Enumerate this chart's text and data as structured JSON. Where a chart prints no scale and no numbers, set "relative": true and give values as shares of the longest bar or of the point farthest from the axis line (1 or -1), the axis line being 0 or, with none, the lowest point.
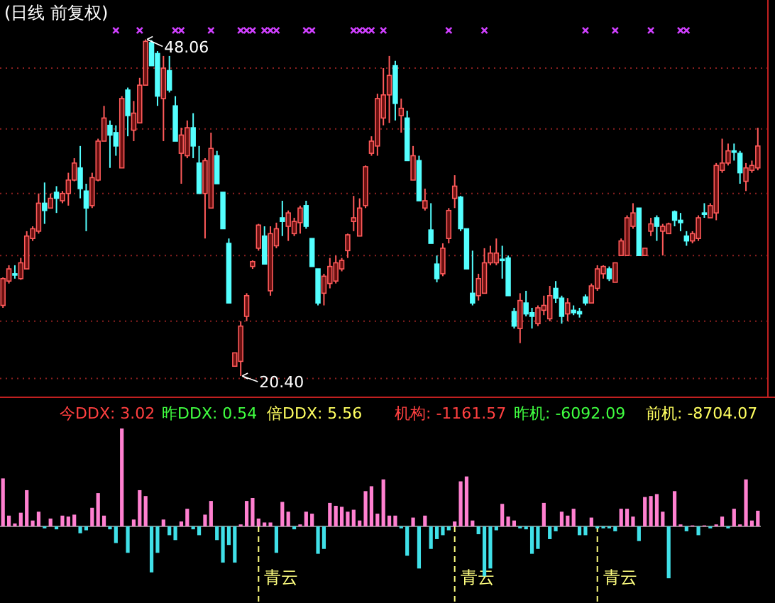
{
  "chart_data": [
    {
      "type": "candlestick",
      "title": "(日线 前复权)",
      "categories": [
        null,
        null,
        null,
        null,
        null,
        null,
        null,
        null,
        null,
        null,
        null,
        null,
        null,
        null,
        null,
        null,
        null,
        null,
        null,
        null,
        null,
        null,
        null,
        null,
        null,
        null,
        null,
        null,
        null,
        null,
        null,
        null,
        null,
        null,
        null,
        null,
        null,
        null,
        null,
        null,
        null,
        null,
        null,
        null,
        null,
        null,
        null,
        null,
        null,
        null,
        null,
        null,
        null,
        null,
        null,
        null,
        null,
        null,
        null,
        null,
        null,
        null,
        null,
        null,
        null,
        null,
        null,
        null,
        null,
        null,
        null,
        null,
        null,
        null,
        null,
        null,
        null,
        null,
        null,
        null,
        null,
        null,
        null,
        null,
        null,
        null,
        null,
        null,
        null,
        null,
        null,
        null,
        null,
        null,
        null,
        null,
        null,
        null,
        null,
        null,
        null,
        null,
        null,
        null,
        null,
        null,
        null,
        null,
        null,
        null,
        null,
        null,
        null,
        null,
        null,
        null,
        null,
        null,
        null,
        null,
        null,
        null,
        null,
        null,
        null,
        null,
        null,
        null
      ],
      "ohlc": [
        [
          26.2,
          28.5,
          26.0,
          28.4
        ],
        [
          28.2,
          29.5,
          28.0,
          29.2
        ],
        [
          28.8,
          29.5,
          28.4,
          28.7
        ],
        [
          28.4,
          30.1,
          28.3,
          29.7
        ],
        [
          29.2,
          32.3,
          29.2,
          31.9
        ],
        [
          31.7,
          32.7,
          31.5,
          32.5
        ],
        [
          32.3,
          35.4,
          32.1,
          34.6
        ],
        [
          34.6,
          36.3,
          32.9,
          34.0
        ],
        [
          34.2,
          35.4,
          34.2,
          35.0
        ],
        [
          35.5,
          36.0,
          33.8,
          35.0
        ],
        [
          34.8,
          35.6,
          34.6,
          35.4
        ],
        [
          35.4,
          37.1,
          34.4,
          36.5
        ],
        [
          36.5,
          38.3,
          36.4,
          37.9
        ],
        [
          37.5,
          39.3,
          35.0,
          35.8
        ],
        [
          35.6,
          36.2,
          32.3,
          34.2
        ],
        [
          34.4,
          37.1,
          34.2,
          36.7
        ],
        [
          36.5,
          39.9,
          36.4,
          39.7
        ],
        [
          39.7,
          42.6,
          39.7,
          41.6
        ],
        [
          41.0,
          41.4,
          37.5,
          40.2
        ],
        [
          40.4,
          41.0,
          38.5,
          39.3
        ],
        [
          37.5,
          43.4,
          37.5,
          43.2
        ],
        [
          43.9,
          44.1,
          40.1,
          41.8
        ],
        [
          40.6,
          43.0,
          39.7,
          42.0
        ],
        [
          41.2,
          44.9,
          41.2,
          44.3
        ],
        [
          44.3,
          48.06,
          44.3,
          47.9
        ],
        [
          47.8,
          48.0,
          45.9,
          45.9
        ],
        [
          46.9,
          47.1,
          42.6,
          43.4
        ],
        [
          43.2,
          46.7,
          39.7,
          45.7
        ],
        [
          45.5,
          46.7,
          43.7,
          43.9
        ],
        [
          42.6,
          43.4,
          39.7,
          39.7
        ],
        [
          38.7,
          40.8,
          36.2,
          40.2
        ],
        [
          38.5,
          41.4,
          38.3,
          40.8
        ],
        [
          40.8,
          42.0,
          38.3,
          39.3
        ],
        [
          37.9,
          39.3,
          35.4,
          35.4
        ],
        [
          35.4,
          38.3,
          31.7,
          38.1
        ],
        [
          34.2,
          40.4,
          34.2,
          39.1
        ],
        [
          38.5,
          38.9,
          36.2,
          36.2
        ],
        [
          35.5,
          35.5,
          32.5,
          32.5
        ],
        [
          31.3,
          31.7,
          26.4,
          26.4
        ],
        [
          21.2,
          22.3,
          21.2,
          22.3
        ],
        [
          21.6,
          24.9,
          20.4,
          24.5
        ],
        [
          25.3,
          27.2,
          24.9,
          27.0
        ],
        [
          29.4,
          29.9,
          29.2,
          29.8
        ],
        [
          30.9,
          32.9,
          30.7,
          32.8
        ],
        [
          31.9,
          32.7,
          29.6,
          29.6
        ],
        [
          27.4,
          32.7,
          27.0,
          32.1
        ],
        [
          31.1,
          33.0,
          30.9,
          32.5
        ],
        [
          33.4,
          34.8,
          31.9,
          33.1
        ],
        [
          32.7,
          34.0,
          31.5,
          33.8
        ],
        [
          32.1,
          33.4,
          31.9,
          33.1
        ],
        [
          33.0,
          34.4,
          32.1,
          34.2
        ],
        [
          34.4,
          34.8,
          32.5,
          32.7
        ],
        [
          31.7,
          31.7,
          29.4,
          29.4
        ],
        [
          29.2,
          29.2,
          26.2,
          26.4
        ],
        [
          27.2,
          28.8,
          26.2,
          28.6
        ],
        [
          28.0,
          30.1,
          27.6,
          29.4
        ],
        [
          28.2,
          30.3,
          28.0,
          29.7
        ],
        [
          29.2,
          30.1,
          29.0,
          29.9
        ],
        [
          30.7,
          32.1,
          30.1,
          32.0
        ],
        [
          33.1,
          35.2,
          32.3,
          33.4
        ],
        [
          31.9,
          35.0,
          31.9,
          34.2
        ],
        [
          34.4,
          37.7,
          34.2,
          37.6
        ],
        [
          38.7,
          40.1,
          38.5,
          39.7
        ],
        [
          39.3,
          43.6,
          38.5,
          43.2
        ],
        [
          41.6,
          45.7,
          41.0,
          43.5
        ],
        [
          43.5,
          46.7,
          41.2,
          45.1
        ],
        [
          45.9,
          46.3,
          41.4,
          42.8
        ],
        [
          41.8,
          43.2,
          40.4,
          42.4
        ],
        [
          41.6,
          42.2,
          38.1,
          38.1
        ],
        [
          36.5,
          39.3,
          36.5,
          38.5
        ],
        [
          38.1,
          38.5,
          34.8,
          34.8
        ],
        [
          34.2,
          35.8,
          34.0,
          34.8
        ],
        [
          32.4,
          34.6,
          31.3,
          31.3
        ],
        [
          29.6,
          30.3,
          28.1,
          28.4
        ],
        [
          28.8,
          31.3,
          28.6,
          30.9
        ],
        [
          31.7,
          34.2,
          31.3,
          34.0
        ],
        [
          35.0,
          36.9,
          34.2,
          36.0
        ],
        [
          35.1,
          35.2,
          32.3,
          32.5
        ],
        [
          32.5,
          32.5,
          29.2,
          29.2
        ],
        [
          27.2,
          30.7,
          26.2,
          26.4
        ],
        [
          27.0,
          28.8,
          26.6,
          28.4
        ],
        [
          27.2,
          30.9,
          27.2,
          29.7
        ],
        [
          29.7,
          31.1,
          29.5,
          30.5
        ],
        [
          29.7,
          31.7,
          29.5,
          30.5
        ],
        [
          30.0,
          31.1,
          28.4,
          29.9
        ],
        [
          30.1,
          30.3,
          27.0,
          27.0
        ],
        [
          25.7,
          26.0,
          24.3,
          24.5
        ],
        [
          24.3,
          27.2,
          23.1,
          26.6
        ],
        [
          26.4,
          27.4,
          25.3,
          25.5
        ],
        [
          25.6,
          26.0,
          24.3,
          25.3
        ],
        [
          24.7,
          26.2,
          24.5,
          26.0
        ],
        [
          25.8,
          27.0,
          25.4,
          26.2
        ],
        [
          25.1,
          27.8,
          24.9,
          27.0
        ],
        [
          27.6,
          28.2,
          26.4,
          26.8
        ],
        [
          26.8,
          27.0,
          24.7,
          25.3
        ],
        [
          25.5,
          26.8,
          24.9,
          26.4
        ],
        [
          25.8,
          26.2,
          25.4,
          25.6
        ],
        [
          25.7,
          26.0,
          25.2,
          25.5
        ],
        [
          26.9,
          27.1,
          26.2,
          26.4
        ],
        [
          26.4,
          28.0,
          26.4,
          27.8
        ],
        [
          27.6,
          29.5,
          27.4,
          29.2
        ],
        [
          28.8,
          29.5,
          28.4,
          29.4
        ],
        [
          29.2,
          29.4,
          28.2,
          28.4
        ],
        [
          28.1,
          29.7,
          28.1,
          29.7
        ],
        [
          30.3,
          31.7,
          30.3,
          31.5
        ],
        [
          30.3,
          33.6,
          30.3,
          33.4
        ],
        [
          32.7,
          34.6,
          32.5,
          33.8
        ],
        [
          34.2,
          34.2,
          30.3,
          30.3
        ],
        [
          30.3,
          30.9,
          30.3,
          30.9
        ],
        [
          32.3,
          33.4,
          31.9,
          32.9
        ],
        [
          33.4,
          33.6,
          31.5,
          32.7
        ],
        [
          32.3,
          32.9,
          30.3,
          32.7
        ],
        [
          32.1,
          33.0,
          32.1,
          32.9
        ],
        [
          33.9,
          34.0,
          32.7,
          33.2
        ],
        [
          33.2,
          33.8,
          32.3,
          33.0
        ],
        [
          31.9,
          32.3,
          31.1,
          31.5
        ],
        [
          31.5,
          32.3,
          31.3,
          32.1
        ],
        [
          31.7,
          33.6,
          31.5,
          33.4
        ],
        [
          33.8,
          34.6,
          33.4,
          33.7
        ],
        [
          33.4,
          34.6,
          33.4,
          34.4
        ],
        [
          33.8,
          37.9,
          33.2,
          37.7
        ],
        [
          37.3,
          39.9,
          37.1,
          37.9
        ],
        [
          37.9,
          39.5,
          37.7,
          38.9
        ],
        [
          38.9,
          39.5,
          38.1,
          38.8
        ],
        [
          38.7,
          38.9,
          36.2,
          37.1
        ],
        [
          36.4,
          37.9,
          35.6,
          37.5
        ],
        [
          37.3,
          38.1,
          37.1,
          37.7
        ],
        [
          37.5,
          40.8,
          37.3,
          39.3
        ]
      ],
      "series": [
        {
          "type": "scatter",
          "color": "#d040ff",
          "marker": "cross",
          "values": [
            null,
            null,
            null,
            null,
            null,
            null,
            null,
            null,
            null,
            null,
            null,
            null,
            null,
            null,
            null,
            null,
            null,
            null,
            null,
            48.8,
            null,
            null,
            null,
            48.8,
            null,
            null,
            null,
            null,
            null,
            48.8,
            48.8,
            null,
            null,
            null,
            null,
            48.8,
            null,
            null,
            null,
            null,
            48.8,
            48.8,
            48.8,
            null,
            48.8,
            48.8,
            48.8,
            null,
            null,
            null,
            null,
            48.8,
            48.8,
            null,
            null,
            null,
            null,
            null,
            null,
            48.8,
            48.8,
            48.8,
            48.8,
            null,
            48.8,
            null,
            null,
            null,
            null,
            null,
            null,
            null,
            null,
            null,
            null,
            48.8,
            null,
            null,
            null,
            null,
            null,
            48.8,
            null,
            null,
            null,
            null,
            null,
            null,
            null,
            null,
            null,
            null,
            null,
            null,
            null,
            null,
            null,
            null,
            48.8,
            null,
            null,
            null,
            null,
            48.8,
            null,
            null,
            null,
            null,
            null,
            48.8,
            null,
            null,
            null,
            null,
            48.8,
            48.8,
            null,
            null,
            null,
            null,
            null,
            null,
            null,
            null,
            null,
            null,
            null,
            null
          ]
        }
      ],
      "ylim": [
        18.65,
        51.3
      ],
      "yticks": [
        {
          "value": 45.7,
          "label": null
        },
        {
          "value": 40.7,
          "label": null
        },
        {
          "value": 35.4,
          "label": null
        },
        {
          "value": 30.3,
          "label": null
        },
        {
          "value": 24.9,
          "label": null
        },
        {
          "value": 20.2,
          "label": null
        }
      ],
      "grid": "y",
      "annotations": [
        "48.06",
        "20.40"
      ]
    },
    {
      "type": "bar",
      "relative": true,
      "categories": [
        null,
        null,
        null,
        null,
        null,
        null,
        null,
        null,
        null,
        null,
        null,
        null,
        null,
        null,
        null,
        null,
        null,
        null,
        null,
        null,
        null,
        null,
        null,
        null,
        null,
        null,
        null,
        null,
        null,
        null,
        null,
        null,
        null,
        null,
        null,
        null,
        null,
        null,
        null,
        null,
        null,
        null,
        null,
        null,
        null,
        null,
        null,
        null,
        null,
        null,
        null,
        null,
        null,
        null,
        null,
        null,
        null,
        null,
        null,
        null,
        null,
        null,
        null,
        null,
        null,
        null,
        null,
        null,
        null,
        null,
        null,
        null,
        null,
        null,
        null,
        null,
        null,
        null,
        null,
        null,
        null,
        null,
        null,
        null,
        null,
        null,
        null,
        null,
        null,
        null,
        null,
        null,
        null,
        null,
        null,
        null,
        null,
        null,
        null,
        null,
        null,
        null,
        null,
        null,
        null,
        null,
        null,
        null,
        null,
        null,
        null,
        null,
        null,
        null,
        null,
        null,
        null,
        null,
        null,
        null,
        null,
        null,
        null,
        null,
        null,
        null,
        null,
        null
      ],
      "values": [
        0.49,
        0.11,
        0.03,
        0.14,
        0.37,
        0.06,
        0.15,
        -0.02,
        0.08,
        -0.03,
        0.11,
        0.1,
        0.12,
        -0.07,
        -0.04,
        0.19,
        0.34,
        0.11,
        -0.03,
        -0.17,
        1,
        -0.27,
        0.07,
        0.37,
        0.31,
        -0.47,
        -0.27,
        0.07,
        -0.09,
        -0.14,
        0.05,
        0.18,
        -0.03,
        -0.09,
        0.12,
        0.26,
        -0.14,
        -0.37,
        -0.19,
        -0.37,
        0.02,
        0.26,
        0.29,
        0.08,
        0.04,
        0.04,
        -0.27,
        0.25,
        0.15,
        -0.03,
        0.02,
        0.15,
        0.13,
        -0.28,
        -0.23,
        0.24,
        0.21,
        0.2,
        0.15,
        0.17,
        0.06,
        0.36,
        0.41,
        0.13,
        0.48,
        0.11,
        0.11,
        -0.02,
        -0.3,
        0.09,
        -0.43,
        0.11,
        -0.23,
        -0.13,
        -0.09,
        -0.04,
        0.05,
        0.46,
        0.51,
        0.06,
        -0.08,
        -0.51,
        -0.43,
        -0.04,
        0.23,
        0.1,
        0.06,
        -0.02,
        -0.03,
        -0.28,
        -0.23,
        0.24,
        -0.13,
        -0.05,
        0.15,
        0.11,
        0.18,
        -0.09,
        -0.09,
        0.09,
        -0.02,
        -0.02,
        -0.02,
        -0.05,
        0.18,
        0.18,
        0.1,
        -0.15,
        0.3,
        0.31,
        0.33,
        0.15,
        -0.53,
        0.36,
        0.02,
        -0.05,
        0.01,
        -0.09,
        0.01,
        -0.02,
        0.02,
        0.1,
        -0.02,
        0.18,
        0.02,
        0.48,
        0.06,
        0.16
      ],
      "annotations": [
        "今DDX: 3.02",
        "昨DDX: 0.54",
        "倍DDX: 5.56",
        "机构: -1161.57",
        "昨机: -6092.09",
        "前机: -8704.07",
        "青云",
        "青云",
        "青云"
      ]
    }
  ]
}
